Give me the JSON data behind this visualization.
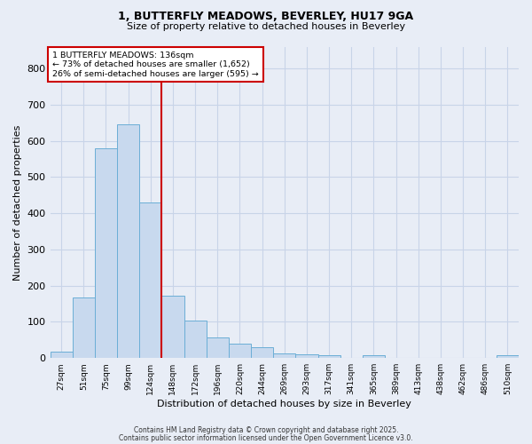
{
  "title_line1": "1, BUTTERFLY MEADOWS, BEVERLEY, HU17 9GA",
  "title_line2": "Size of property relative to detached houses in Beverley",
  "xlabel": "Distribution of detached houses by size in Beverley",
  "ylabel": "Number of detached properties",
  "bar_labels": [
    "27sqm",
    "51sqm",
    "75sqm",
    "99sqm",
    "124sqm",
    "148sqm",
    "172sqm",
    "196sqm",
    "220sqm",
    "244sqm",
    "269sqm",
    "293sqm",
    "317sqm",
    "341sqm",
    "365sqm",
    "389sqm",
    "413sqm",
    "438sqm",
    "462sqm",
    "486sqm",
    "510sqm"
  ],
  "bar_values": [
    18,
    168,
    580,
    645,
    430,
    173,
    103,
    57,
    40,
    30,
    13,
    10,
    8,
    0,
    7,
    0,
    0,
    0,
    0,
    0,
    7
  ],
  "bar_color": "#c8d9ee",
  "bar_edge_color": "#6baed6",
  "vline_x_index": 4.5,
  "vline_color": "#cc0000",
  "annotation_line1": "1 BUTTERFLY MEADOWS: 136sqm",
  "annotation_line2": "← 73% of detached houses are smaller (1,652)",
  "annotation_line3": "26% of semi-detached houses are larger (595) →",
  "annotation_box_facecolor": "#ffffff",
  "annotation_box_edgecolor": "#cc0000",
  "ylim": [
    0,
    860
  ],
  "yticks": [
    0,
    100,
    200,
    300,
    400,
    500,
    600,
    700,
    800
  ],
  "grid_color": "#c8d4e8",
  "bg_color": "#e8edf6",
  "title_fontsize": 9,
  "subtitle_fontsize": 8,
  "footer_line1": "Contains HM Land Registry data © Crown copyright and database right 2025.",
  "footer_line2": "Contains public sector information licensed under the Open Government Licence v3.0."
}
